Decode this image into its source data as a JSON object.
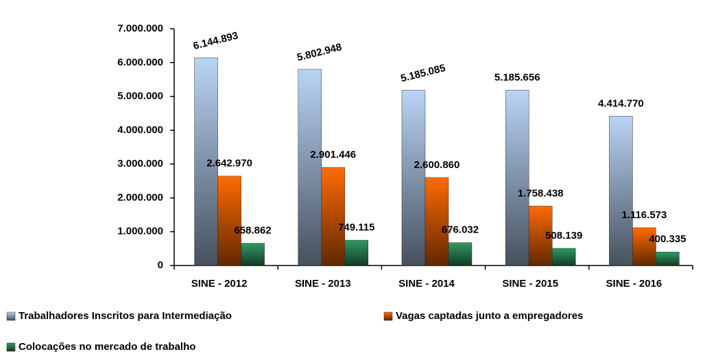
{
  "chart_data": {
    "type": "bar",
    "categories": [
      "SINE - 2012",
      "SINE - 2013",
      "SINE - 2014",
      "SINE - 2015",
      "SINE - 2016"
    ],
    "series": [
      {
        "name": "Trabalhadores Inscritos para Intermediação",
        "color": "#b9d4f5",
        "values": [
          6144893,
          5802948,
          5185085,
          5185656,
          4414770
        ],
        "value_labels": [
          "6.144.893",
          "5.802.948",
          "5.185.085",
          "5.185.656",
          "4.414.770"
        ]
      },
      {
        "name": "Vagas captadas junto a empregadores",
        "color": "#ff6a00",
        "values": [
          2642970,
          2901446,
          2600860,
          1758438,
          1116573
        ],
        "value_labels": [
          "2.642.970",
          "2.901.446",
          "2.600.860",
          "1.758.438",
          "1.116.573"
        ]
      },
      {
        "name": "Colocações no mercado de trabalho",
        "color": "#2f9a63",
        "values": [
          658862,
          749115,
          676032,
          508139,
          400335
        ],
        "value_labels": [
          "658.862",
          "749.115",
          "676.032",
          "508.139",
          "400.335"
        ]
      }
    ],
    "ylim": [
      0,
      7000000
    ],
    "yticks": [
      0,
      {
        "value": 1000000,
        "label": "1.000.000"
      },
      {
        "value": 2000000,
        "label": "2.000.000"
      },
      {
        "value": 3000000,
        "label": "3.000.000"
      },
      {
        "value": 4000000,
        "label": "4.000.000"
      },
      {
        "value": 5000000,
        "label": "5.000.000"
      },
      {
        "value": 6000000,
        "label": "6.000.000"
      },
      {
        "value": 7000000,
        "label": "7.000.000"
      }
    ],
    "grid": false
  }
}
